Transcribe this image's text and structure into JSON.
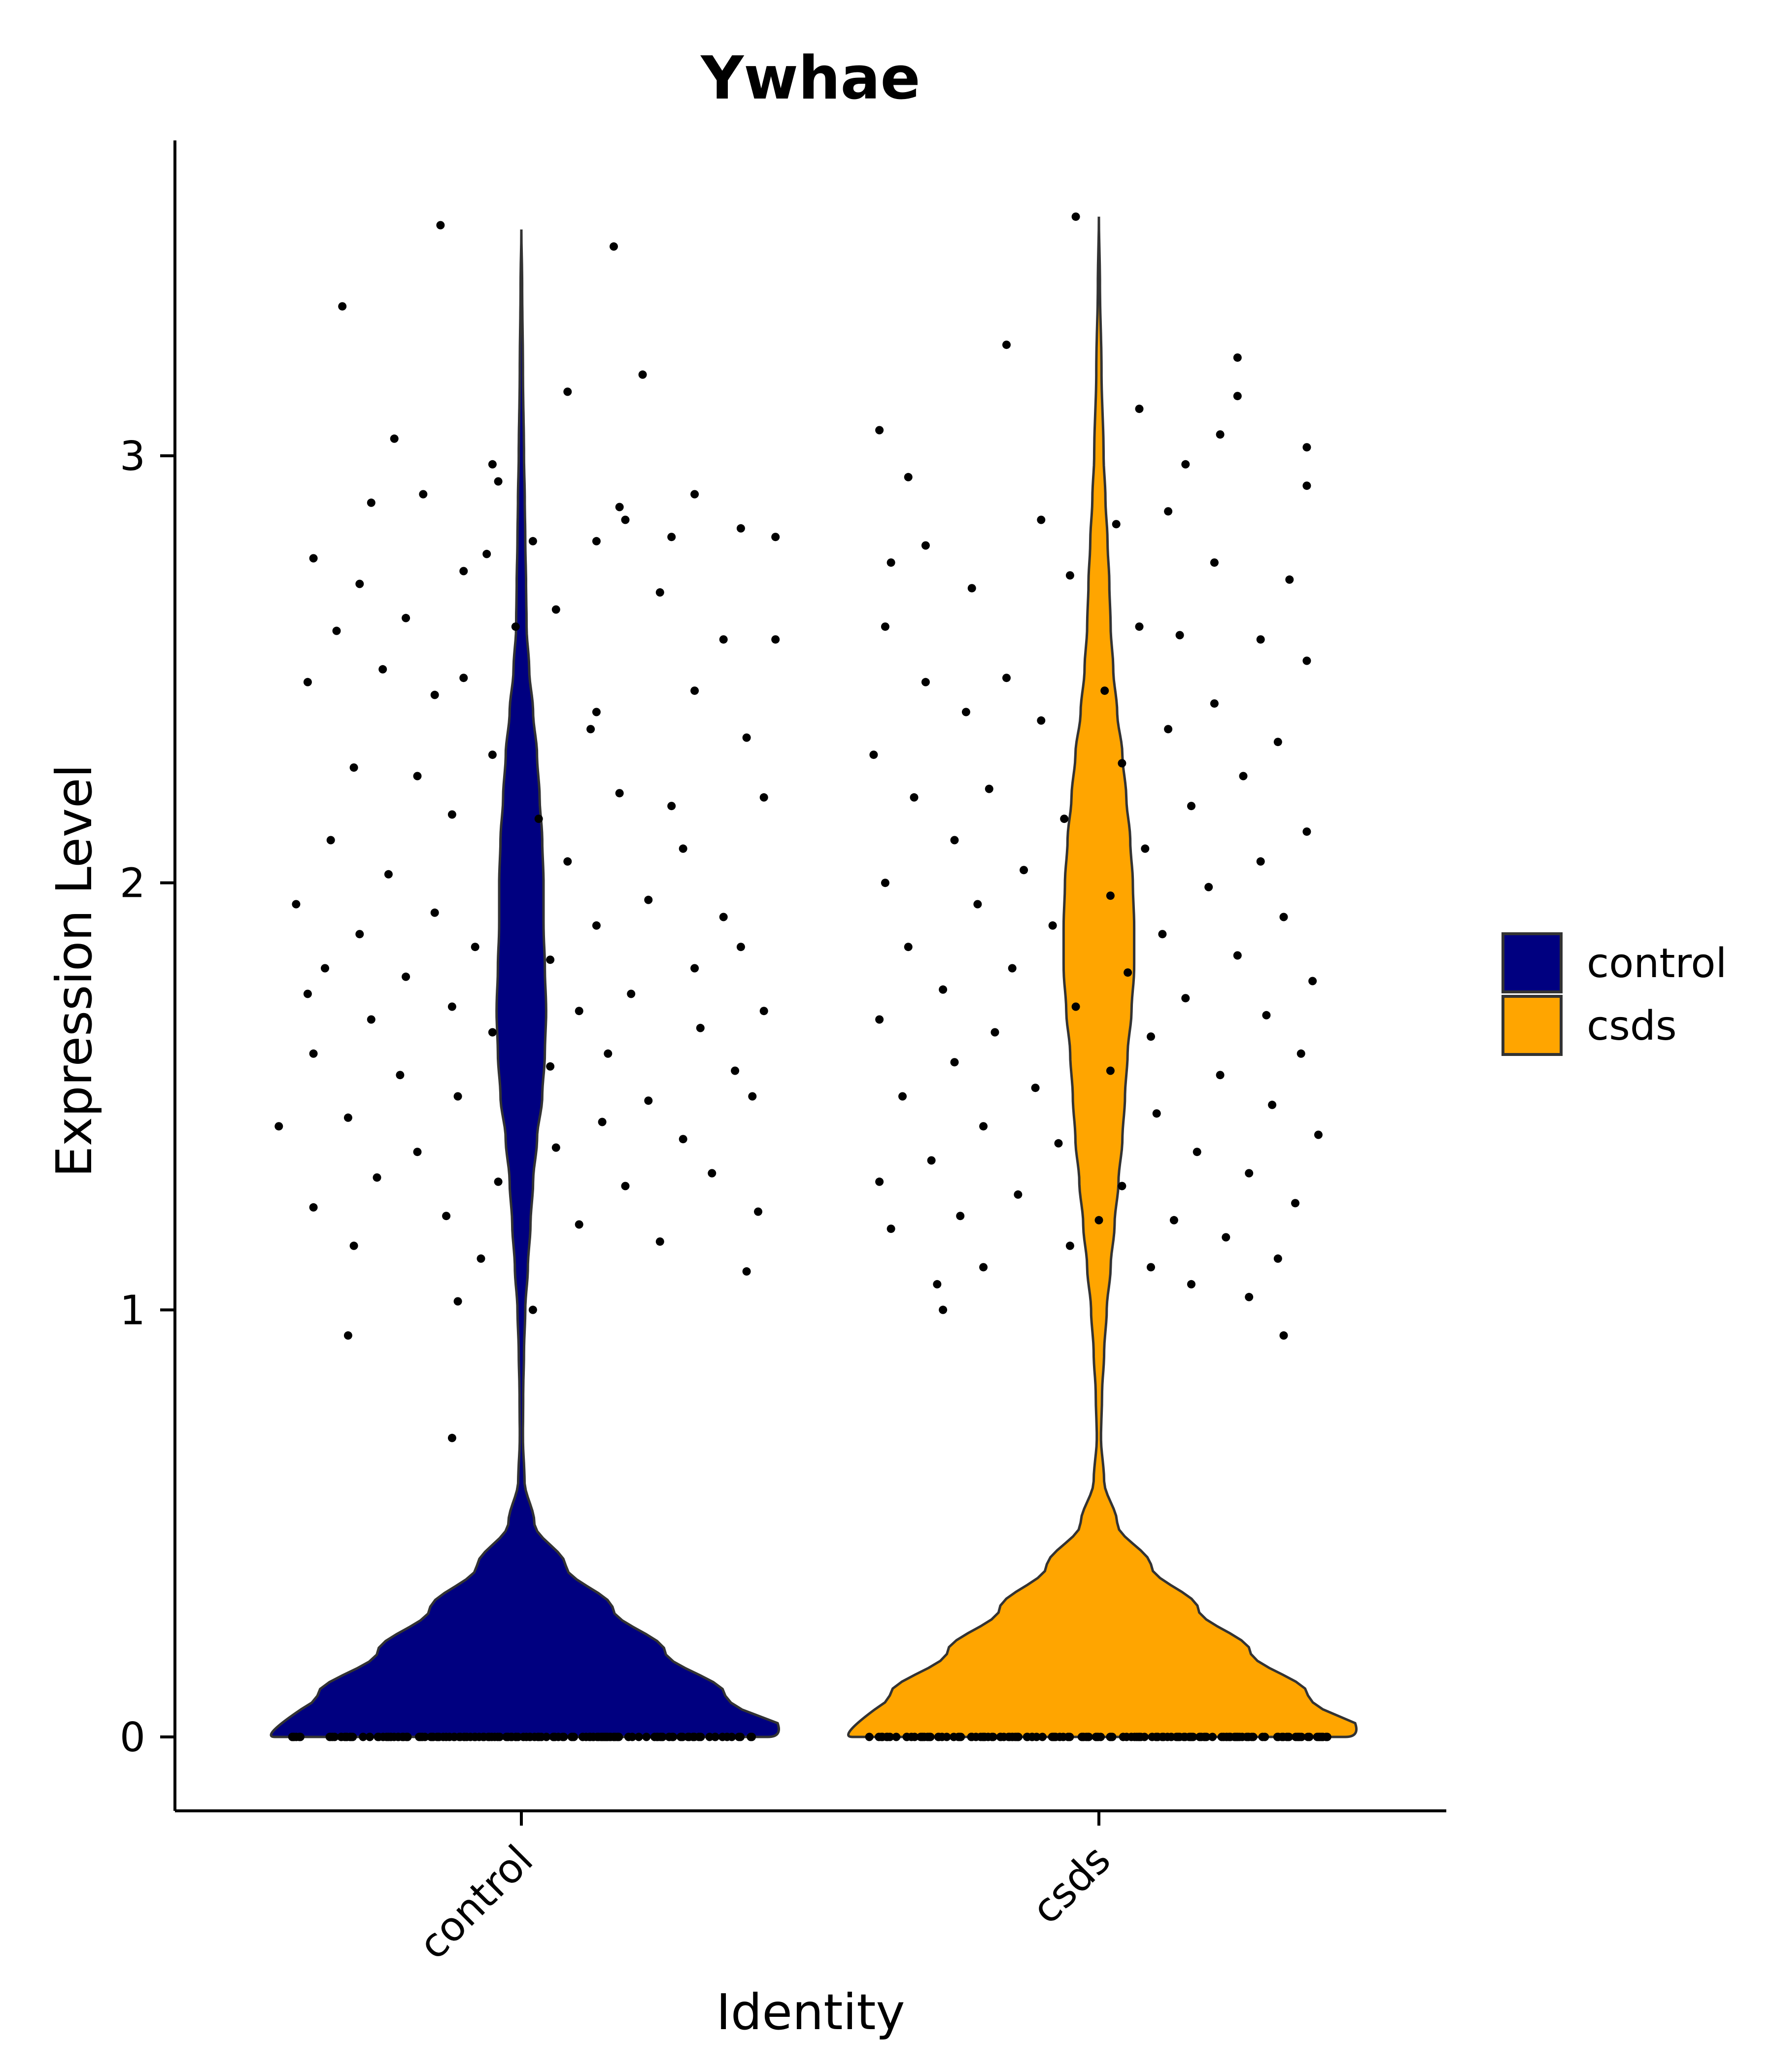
{
  "chart_data": {
    "type": "violin",
    "title": "Ywhae",
    "xlabel": "Identity",
    "ylabel": "Expression Level",
    "ylim": [
      -0.18,
      3.6
    ],
    "yticks": [
      0,
      1,
      2,
      3
    ],
    "grid": false,
    "legend_position": "right",
    "categories": [
      "control",
      "csds"
    ],
    "colors": {
      "control": "#000080",
      "csds": "#FFA500"
    },
    "legend": [
      {
        "label": "control",
        "color": "#000080"
      },
      {
        "label": "csds",
        "color": "#FFA500"
      }
    ],
    "series": [
      {
        "name": "control",
        "max_value": 3.53,
        "profile": [
          [
            0.0,
            1.0
          ],
          [
            0.1,
            0.78
          ],
          [
            0.2,
            0.55
          ],
          [
            0.3,
            0.35
          ],
          [
            0.4,
            0.17
          ],
          [
            0.5,
            0.05
          ],
          [
            0.6,
            0.012
          ],
          [
            0.7,
            0.006
          ],
          [
            0.8,
            0.007
          ],
          [
            0.9,
            0.01
          ],
          [
            1.0,
            0.015
          ],
          [
            1.1,
            0.025
          ],
          [
            1.2,
            0.035
          ],
          [
            1.3,
            0.045
          ],
          [
            1.4,
            0.06
          ],
          [
            1.5,
            0.08
          ],
          [
            1.6,
            0.09
          ],
          [
            1.7,
            0.095
          ],
          [
            1.8,
            0.09
          ],
          [
            1.9,
            0.085
          ],
          [
            2.0,
            0.085
          ],
          [
            2.1,
            0.08
          ],
          [
            2.2,
            0.07
          ],
          [
            2.3,
            0.06
          ],
          [
            2.4,
            0.045
          ],
          [
            2.5,
            0.03
          ],
          [
            2.6,
            0.02
          ],
          [
            2.7,
            0.018
          ],
          [
            2.8,
            0.015
          ],
          [
            2.9,
            0.013
          ],
          [
            3.0,
            0.01
          ],
          [
            3.2,
            0.006
          ],
          [
            3.4,
            0.003
          ],
          [
            3.53,
            0.0
          ]
        ],
        "points_high": [
          [
            -0.31,
            3.35
          ],
          [
            -0.14,
            3.54
          ],
          [
            0.16,
            3.49
          ],
          [
            0.08,
            3.15
          ],
          [
            0.21,
            3.19
          ],
          [
            -0.22,
            3.04
          ],
          [
            -0.05,
            2.98
          ],
          [
            -0.04,
            2.94
          ],
          [
            -0.17,
            2.91
          ],
          [
            0.3,
            2.91
          ],
          [
            -0.26,
            2.89
          ],
          [
            0.17,
            2.88
          ],
          [
            0.26,
            2.81
          ],
          [
            0.38,
            2.83
          ],
          [
            -0.06,
            2.77
          ],
          [
            0.13,
            2.8
          ],
          [
            0.18,
            2.85
          ],
          [
            0.44,
            2.81
          ],
          [
            -0.36,
            2.76
          ],
          [
            -0.28,
            2.7
          ],
          [
            -0.1,
            2.73
          ],
          [
            0.02,
            2.8
          ],
          [
            -0.2,
            2.62
          ],
          [
            0.24,
            2.68
          ],
          [
            -0.01,
            2.6
          ],
          [
            0.35,
            2.57
          ],
          [
            -0.32,
            2.59
          ],
          [
            -0.15,
            2.44
          ],
          [
            0.06,
            2.64
          ],
          [
            0.3,
            2.45
          ],
          [
            -0.24,
            2.5
          ],
          [
            -0.1,
            2.48
          ],
          [
            0.13,
            2.4
          ],
          [
            0.44,
            2.57
          ],
          [
            -0.37,
            2.47
          ],
          [
            0.39,
            2.34
          ],
          [
            0.26,
            2.18
          ],
          [
            -0.29,
            2.27
          ],
          [
            0.12,
            2.36
          ],
          [
            -0.18,
            2.25
          ],
          [
            -0.05,
            2.3
          ],
          [
            0.17,
            2.21
          ],
          [
            0.42,
            2.2
          ],
          [
            -0.33,
            2.1
          ],
          [
            -0.12,
            2.16
          ],
          [
            0.03,
            2.15
          ],
          [
            0.28,
            2.08
          ],
          [
            -0.23,
            2.02
          ],
          [
            0.08,
            2.05
          ],
          [
            -0.39,
            1.95
          ],
          [
            0.22,
            1.96
          ],
          [
            0.35,
            1.92
          ],
          [
            -0.15,
            1.93
          ],
          [
            -0.28,
            1.88
          ],
          [
            0.13,
            1.9
          ],
          [
            0.38,
            1.85
          ],
          [
            -0.34,
            1.8
          ],
          [
            -0.08,
            1.85
          ],
          [
            0.05,
            1.82
          ],
          [
            0.3,
            1.8
          ],
          [
            -0.2,
            1.78
          ],
          [
            0.19,
            1.74
          ],
          [
            -0.37,
            1.74
          ],
          [
            -0.12,
            1.71
          ],
          [
            0.1,
            1.7
          ],
          [
            0.42,
            1.7
          ],
          [
            -0.26,
            1.68
          ],
          [
            0.31,
            1.66
          ],
          [
            -0.05,
            1.65
          ],
          [
            -0.36,
            1.6
          ],
          [
            0.15,
            1.6
          ],
          [
            0.37,
            1.56
          ],
          [
            -0.21,
            1.55
          ],
          [
            0.05,
            1.57
          ],
          [
            -0.11,
            1.5
          ],
          [
            0.22,
            1.49
          ],
          [
            0.4,
            1.5
          ],
          [
            -0.3,
            1.45
          ],
          [
            0.14,
            1.44
          ],
          [
            -0.42,
            1.43
          ],
          [
            0.28,
            1.4
          ],
          [
            -0.18,
            1.37
          ],
          [
            0.06,
            1.38
          ],
          [
            0.33,
            1.32
          ],
          [
            -0.25,
            1.31
          ],
          [
            -0.04,
            1.3
          ],
          [
            0.18,
            1.29
          ],
          [
            -0.36,
            1.24
          ],
          [
            0.41,
            1.23
          ],
          [
            -0.13,
            1.22
          ],
          [
            0.1,
            1.2
          ],
          [
            -0.29,
            1.15
          ],
          [
            0.24,
            1.16
          ],
          [
            -0.07,
            1.12
          ],
          [
            0.39,
            1.09
          ],
          [
            0.02,
            1.0
          ],
          [
            -0.11,
            1.02
          ],
          [
            -0.3,
            0.94
          ],
          [
            -0.12,
            0.7
          ]
        ],
        "points_zero_count": 170
      },
      {
        "name": "csds",
        "max_value": 3.56,
        "profile": [
          [
            0.0,
            1.0
          ],
          [
            0.1,
            0.8
          ],
          [
            0.2,
            0.58
          ],
          [
            0.3,
            0.38
          ],
          [
            0.4,
            0.2
          ],
          [
            0.5,
            0.07
          ],
          [
            0.6,
            0.02
          ],
          [
            0.7,
            0.008
          ],
          [
            0.8,
            0.012
          ],
          [
            0.9,
            0.02
          ],
          [
            1.0,
            0.03
          ],
          [
            1.1,
            0.045
          ],
          [
            1.2,
            0.06
          ],
          [
            1.3,
            0.075
          ],
          [
            1.4,
            0.09
          ],
          [
            1.5,
            0.1
          ],
          [
            1.6,
            0.11
          ],
          [
            1.7,
            0.125
          ],
          [
            1.8,
            0.135
          ],
          [
            1.9,
            0.135
          ],
          [
            2.0,
            0.13
          ],
          [
            2.1,
            0.12
          ],
          [
            2.2,
            0.105
          ],
          [
            2.3,
            0.09
          ],
          [
            2.4,
            0.07
          ],
          [
            2.5,
            0.055
          ],
          [
            2.6,
            0.045
          ],
          [
            2.7,
            0.04
          ],
          [
            2.8,
            0.033
          ],
          [
            2.9,
            0.025
          ],
          [
            3.0,
            0.018
          ],
          [
            3.2,
            0.01
          ],
          [
            3.4,
            0.004
          ],
          [
            3.56,
            0.0
          ]
        ],
        "points_high": [
          [
            -0.04,
            3.56
          ],
          [
            -0.16,
            3.26
          ],
          [
            0.24,
            3.23
          ],
          [
            0.07,
            3.11
          ],
          [
            0.24,
            3.14
          ],
          [
            -0.38,
            3.06
          ],
          [
            0.21,
            3.05
          ],
          [
            0.36,
            3.02
          ],
          [
            0.15,
            2.98
          ],
          [
            -0.33,
            2.95
          ],
          [
            0.36,
            2.93
          ],
          [
            -0.1,
            2.85
          ],
          [
            0.12,
            2.87
          ],
          [
            0.03,
            2.84
          ],
          [
            -0.3,
            2.79
          ],
          [
            0.2,
            2.75
          ],
          [
            -0.36,
            2.75
          ],
          [
            -0.05,
            2.72
          ],
          [
            0.33,
            2.71
          ],
          [
            -0.22,
            2.69
          ],
          [
            0.14,
            2.58
          ],
          [
            -0.37,
            2.6
          ],
          [
            0.28,
            2.57
          ],
          [
            0.07,
            2.6
          ],
          [
            -0.16,
            2.48
          ],
          [
            0.36,
            2.52
          ],
          [
            -0.3,
            2.47
          ],
          [
            0.01,
            2.45
          ],
          [
            0.2,
            2.42
          ],
          [
            -0.23,
            2.4
          ],
          [
            -0.1,
            2.38
          ],
          [
            0.12,
            2.36
          ],
          [
            0.31,
            2.33
          ],
          [
            -0.39,
            2.3
          ],
          [
            0.04,
            2.28
          ],
          [
            0.25,
            2.25
          ],
          [
            -0.19,
            2.22
          ],
          [
            -0.32,
            2.2
          ],
          [
            0.16,
            2.18
          ],
          [
            -0.06,
            2.15
          ],
          [
            0.36,
            2.12
          ],
          [
            -0.25,
            2.1
          ],
          [
            0.08,
            2.08
          ],
          [
            0.28,
            2.05
          ],
          [
            -0.13,
            2.03
          ],
          [
            -0.37,
            2.0
          ],
          [
            0.19,
            1.99
          ],
          [
            0.02,
            1.97
          ],
          [
            -0.21,
            1.95
          ],
          [
            0.32,
            1.92
          ],
          [
            -0.08,
            1.9
          ],
          [
            0.11,
            1.88
          ],
          [
            -0.33,
            1.85
          ],
          [
            0.24,
            1.83
          ],
          [
            -0.15,
            1.8
          ],
          [
            0.05,
            1.79
          ],
          [
            0.37,
            1.77
          ],
          [
            -0.27,
            1.75
          ],
          [
            0.15,
            1.73
          ],
          [
            -0.04,
            1.71
          ],
          [
            0.29,
            1.69
          ],
          [
            -0.38,
            1.68
          ],
          [
            -0.18,
            1.65
          ],
          [
            0.09,
            1.64
          ],
          [
            0.35,
            1.6
          ],
          [
            -0.25,
            1.58
          ],
          [
            0.02,
            1.56
          ],
          [
            0.21,
            1.55
          ],
          [
            -0.11,
            1.52
          ],
          [
            -0.34,
            1.5
          ],
          [
            0.3,
            1.48
          ],
          [
            0.1,
            1.46
          ],
          [
            -0.2,
            1.43
          ],
          [
            0.38,
            1.41
          ],
          [
            -0.07,
            1.39
          ],
          [
            0.17,
            1.37
          ],
          [
            -0.29,
            1.35
          ],
          [
            0.26,
            1.32
          ],
          [
            -0.38,
            1.3
          ],
          [
            0.04,
            1.29
          ],
          [
            -0.14,
            1.27
          ],
          [
            0.34,
            1.25
          ],
          [
            -0.24,
            1.22
          ],
          [
            0.13,
            1.21
          ],
          [
            -0.36,
            1.19
          ],
          [
            0.22,
            1.17
          ],
          [
            -0.05,
            1.15
          ],
          [
            0.31,
            1.12
          ],
          [
            0.09,
            1.1
          ],
          [
            -0.2,
            1.1
          ],
          [
            0.16,
            1.06
          ],
          [
            -0.28,
            1.06
          ],
          [
            0.26,
            1.03
          ],
          [
            -0.27,
            1.0
          ],
          [
            0.32,
            0.94
          ],
          [
            0.0,
            1.21
          ]
        ],
        "points_zero_count": 170
      }
    ]
  }
}
